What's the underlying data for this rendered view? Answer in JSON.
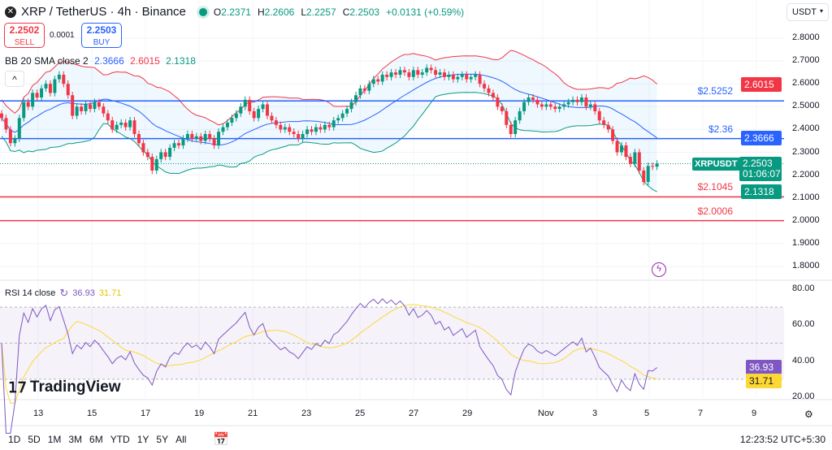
{
  "header": {
    "symbol": "XRP / TetherUS · 4h · Binance",
    "open_label": "O",
    "open": "2.2371",
    "high_label": "H",
    "high": "2.2606",
    "low_label": "L",
    "low": "2.2257",
    "close_label": "C",
    "close": "2.2503",
    "change": "+0.0131 (+0.59%)"
  },
  "trade": {
    "sell_price": "2.2502",
    "sell_label": "SELL",
    "spread": "0.0001",
    "buy_price": "2.2503",
    "buy_label": "BUY"
  },
  "bb": {
    "label": "BB 20 SMA close 2",
    "basis": "2.3666",
    "upper": "2.6015",
    "lower": "2.1318"
  },
  "currency": "USDT",
  "price_axis": [
    "2.8000",
    "2.7000",
    "2.6000",
    "2.5000",
    "2.4000",
    "2.3000",
    "2.2000",
    "2.1000",
    "2.0000",
    "1.9000",
    "1.8000"
  ],
  "axis_labels": {
    "upper": "2.6015",
    "basis": "2.3666",
    "last_symbol": "XRPUSDT",
    "last": "2.2503",
    "countdown": "01:06:07",
    "lower": "2.1318"
  },
  "hlines": [
    {
      "label": "$2.5252",
      "price": 2.5252,
      "color": "#2962ff"
    },
    {
      "label": "$2.36",
      "price": 2.36,
      "color": "#2962ff"
    },
    {
      "label": "$2.1045",
      "price": 2.1045,
      "color": "#f23645"
    },
    {
      "label": "$2.0006",
      "price": 2.0006,
      "color": "#f23645"
    }
  ],
  "rsi": {
    "label": "RSI 14 close",
    "value": "36.93",
    "ma": "31.71",
    "axis": [
      "80.00",
      "60.00",
      "40.00",
      "20.00"
    ]
  },
  "time_axis": [
    "13",
    "15",
    "17",
    "19",
    "21",
    "23",
    "25",
    "27",
    "29",
    "Nov",
    "3",
    "5",
    "7",
    "9"
  ],
  "ranges": [
    "1D",
    "5D",
    "1M",
    "3M",
    "6M",
    "YTD",
    "1Y",
    "5Y",
    "All"
  ],
  "clock": "12:23:52 UTC+5:30",
  "brand": "TradingView",
  "colors": {
    "up": "#089981",
    "down": "#f23645",
    "basis": "#2962ff",
    "rsi": "#7e57c2",
    "rsi_ma": "#fdd835"
  },
  "chart_data": {
    "type": "candlestick",
    "interval": "4h",
    "ylim": [
      1.75,
      2.85
    ],
    "rsi_ylim": [
      15,
      85
    ],
    "closes": [
      2.45,
      2.4,
      2.34,
      2.36,
      2.45,
      2.52,
      2.5,
      2.56,
      2.54,
      2.58,
      2.6,
      2.56,
      2.62,
      2.64,
      2.6,
      2.55,
      2.46,
      2.5,
      2.48,
      2.51,
      2.49,
      2.52,
      2.5,
      2.47,
      2.44,
      2.4,
      2.42,
      2.43,
      2.41,
      2.44,
      2.38,
      2.34,
      2.3,
      2.28,
      2.22,
      2.27,
      2.3,
      2.28,
      2.32,
      2.34,
      2.33,
      2.36,
      2.38,
      2.36,
      2.37,
      2.35,
      2.38,
      2.36,
      2.33,
      2.39,
      2.41,
      2.43,
      2.45,
      2.47,
      2.5,
      2.53,
      2.48,
      2.45,
      2.49,
      2.51,
      2.46,
      2.44,
      2.42,
      2.4,
      2.41,
      2.39,
      2.38,
      2.36,
      2.38,
      2.4,
      2.39,
      2.41,
      2.4,
      2.42,
      2.41,
      2.44,
      2.45,
      2.47,
      2.49,
      2.52,
      2.55,
      2.58,
      2.57,
      2.6,
      2.62,
      2.61,
      2.64,
      2.63,
      2.65,
      2.64,
      2.66,
      2.65,
      2.63,
      2.66,
      2.64,
      2.65,
      2.67,
      2.66,
      2.64,
      2.65,
      2.63,
      2.64,
      2.62,
      2.63,
      2.64,
      2.62,
      2.63,
      2.64,
      2.6,
      2.58,
      2.56,
      2.54,
      2.5,
      2.48,
      2.42,
      2.38,
      2.44,
      2.48,
      2.52,
      2.54,
      2.53,
      2.51,
      2.5,
      2.51,
      2.5,
      2.49,
      2.5,
      2.51,
      2.52,
      2.53,
      2.52,
      2.54,
      2.5,
      2.51,
      2.48,
      2.44,
      2.42,
      2.4,
      2.35,
      2.3,
      2.33,
      2.28,
      2.25,
      2.3,
      2.22,
      2.17,
      2.24,
      2.2371,
      2.2503
    ]
  }
}
